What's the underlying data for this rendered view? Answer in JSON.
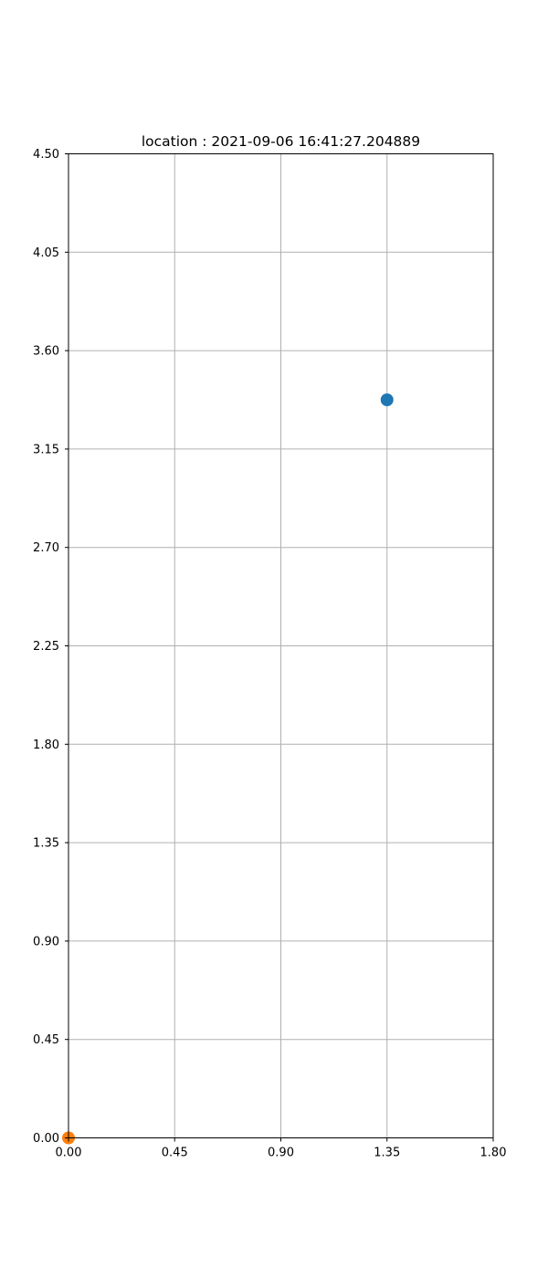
{
  "chart_data": {
    "type": "scatter",
    "title": "location : 2021-09-06 16:41:27.204889",
    "xlabel": "",
    "ylabel": "",
    "xlim": [
      0.0,
      1.8
    ],
    "ylim": [
      0.0,
      4.5
    ],
    "x_ticks": [
      "0.00",
      "0.45",
      "0.90",
      "1.35",
      "1.80"
    ],
    "y_ticks": [
      "0.00",
      "0.45",
      "0.90",
      "1.35",
      "1.80",
      "2.25",
      "2.70",
      "3.15",
      "3.60",
      "4.05",
      "4.50"
    ],
    "grid": true,
    "legend": false,
    "series": [
      {
        "x": [
          1.35
        ],
        "y": [
          3.375
        ],
        "color": "#1f77b4"
      },
      {
        "x": [
          0.0
        ],
        "y": [
          0.0
        ],
        "color": "#ff7f0e"
      }
    ]
  }
}
